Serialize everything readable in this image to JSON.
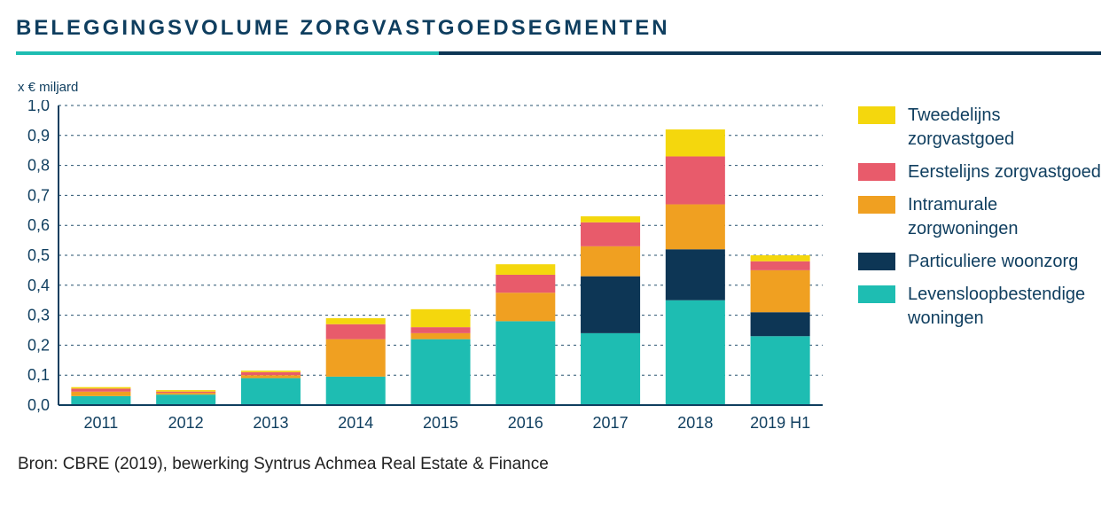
{
  "title": "BELEGGINGSVOLUME ZORGVASTGOEDSEGMENTEN",
  "rule_colors": {
    "teal": "#1ebdb2",
    "navy": "#0d3655"
  },
  "unit_label": "x € miljard",
  "source": "Bron: CBRE (2019), bewerking Syntrus Achmea Real Estate & Finance",
  "chart": {
    "type": "stacked-bar",
    "ylim": [
      0.0,
      1.0
    ],
    "ytick_step": 0.1,
    "ytick_labels": [
      "0,0",
      "0,1",
      "0,2",
      "0,3",
      "0,4",
      "0,5",
      "0,6",
      "0,7",
      "0,8",
      "0,9",
      "1,0"
    ],
    "categories": [
      "2011",
      "2012",
      "2013",
      "2014",
      "2015",
      "2016",
      "2017",
      "2018",
      "2019 H1"
    ],
    "series_order": [
      "levensloop",
      "particulier",
      "intramuraal",
      "eerstelijns",
      "tweedelijns"
    ],
    "series": {
      "tweedelijns": {
        "label": "Tweedelijns zorgvastgoed",
        "color": "#f4d70d"
      },
      "eerstelijns": {
        "label": "Eerstelijns zorgvastgoed",
        "color": "#e85b6b"
      },
      "intramuraal": {
        "label": "Intramurale zorgwoningen",
        "color": "#f0a021"
      },
      "particulier": {
        "label": "Particuliere woonzorg",
        "color": "#0d3655"
      },
      "levensloop": {
        "label": "Levensloopbestendige woningen",
        "color": "#1ebdb2"
      }
    },
    "legend_order": [
      "tweedelijns",
      "eerstelijns",
      "intramuraal",
      "particulier",
      "levensloop"
    ],
    "values": {
      "2011": {
        "levensloop": 0.03,
        "particulier": 0.0,
        "intramuraal": 0.015,
        "eerstelijns": 0.01,
        "tweedelijns": 0.005
      },
      "2012": {
        "levensloop": 0.035,
        "particulier": 0.0,
        "intramuraal": 0.006,
        "eerstelijns": 0.004,
        "tweedelijns": 0.005
      },
      "2013": {
        "levensloop": 0.09,
        "particulier": 0.0,
        "intramuraal": 0.01,
        "eerstelijns": 0.01,
        "tweedelijns": 0.005
      },
      "2014": {
        "levensloop": 0.095,
        "particulier": 0.0,
        "intramuraal": 0.125,
        "eerstelijns": 0.05,
        "tweedelijns": 0.02
      },
      "2015": {
        "levensloop": 0.22,
        "particulier": 0.0,
        "intramuraal": 0.02,
        "eerstelijns": 0.02,
        "tweedelijns": 0.06
      },
      "2016": {
        "levensloop": 0.28,
        "particulier": 0.0,
        "intramuraal": 0.095,
        "eerstelijns": 0.06,
        "tweedelijns": 0.035
      },
      "2017": {
        "levensloop": 0.24,
        "particulier": 0.19,
        "intramuraal": 0.1,
        "eerstelijns": 0.08,
        "tweedelijns": 0.02
      },
      "2018": {
        "levensloop": 0.35,
        "particulier": 0.17,
        "intramuraal": 0.15,
        "eerstelijns": 0.16,
        "tweedelijns": 0.09
      },
      "2019 H1": {
        "levensloop": 0.23,
        "particulier": 0.08,
        "intramuraal": 0.14,
        "eerstelijns": 0.03,
        "tweedelijns": 0.02
      }
    },
    "bar_width_ratio": 0.7,
    "axis_color": "#0f3e5f",
    "grid_color": "#0f3e5f",
    "label_fontsize": 18
  }
}
